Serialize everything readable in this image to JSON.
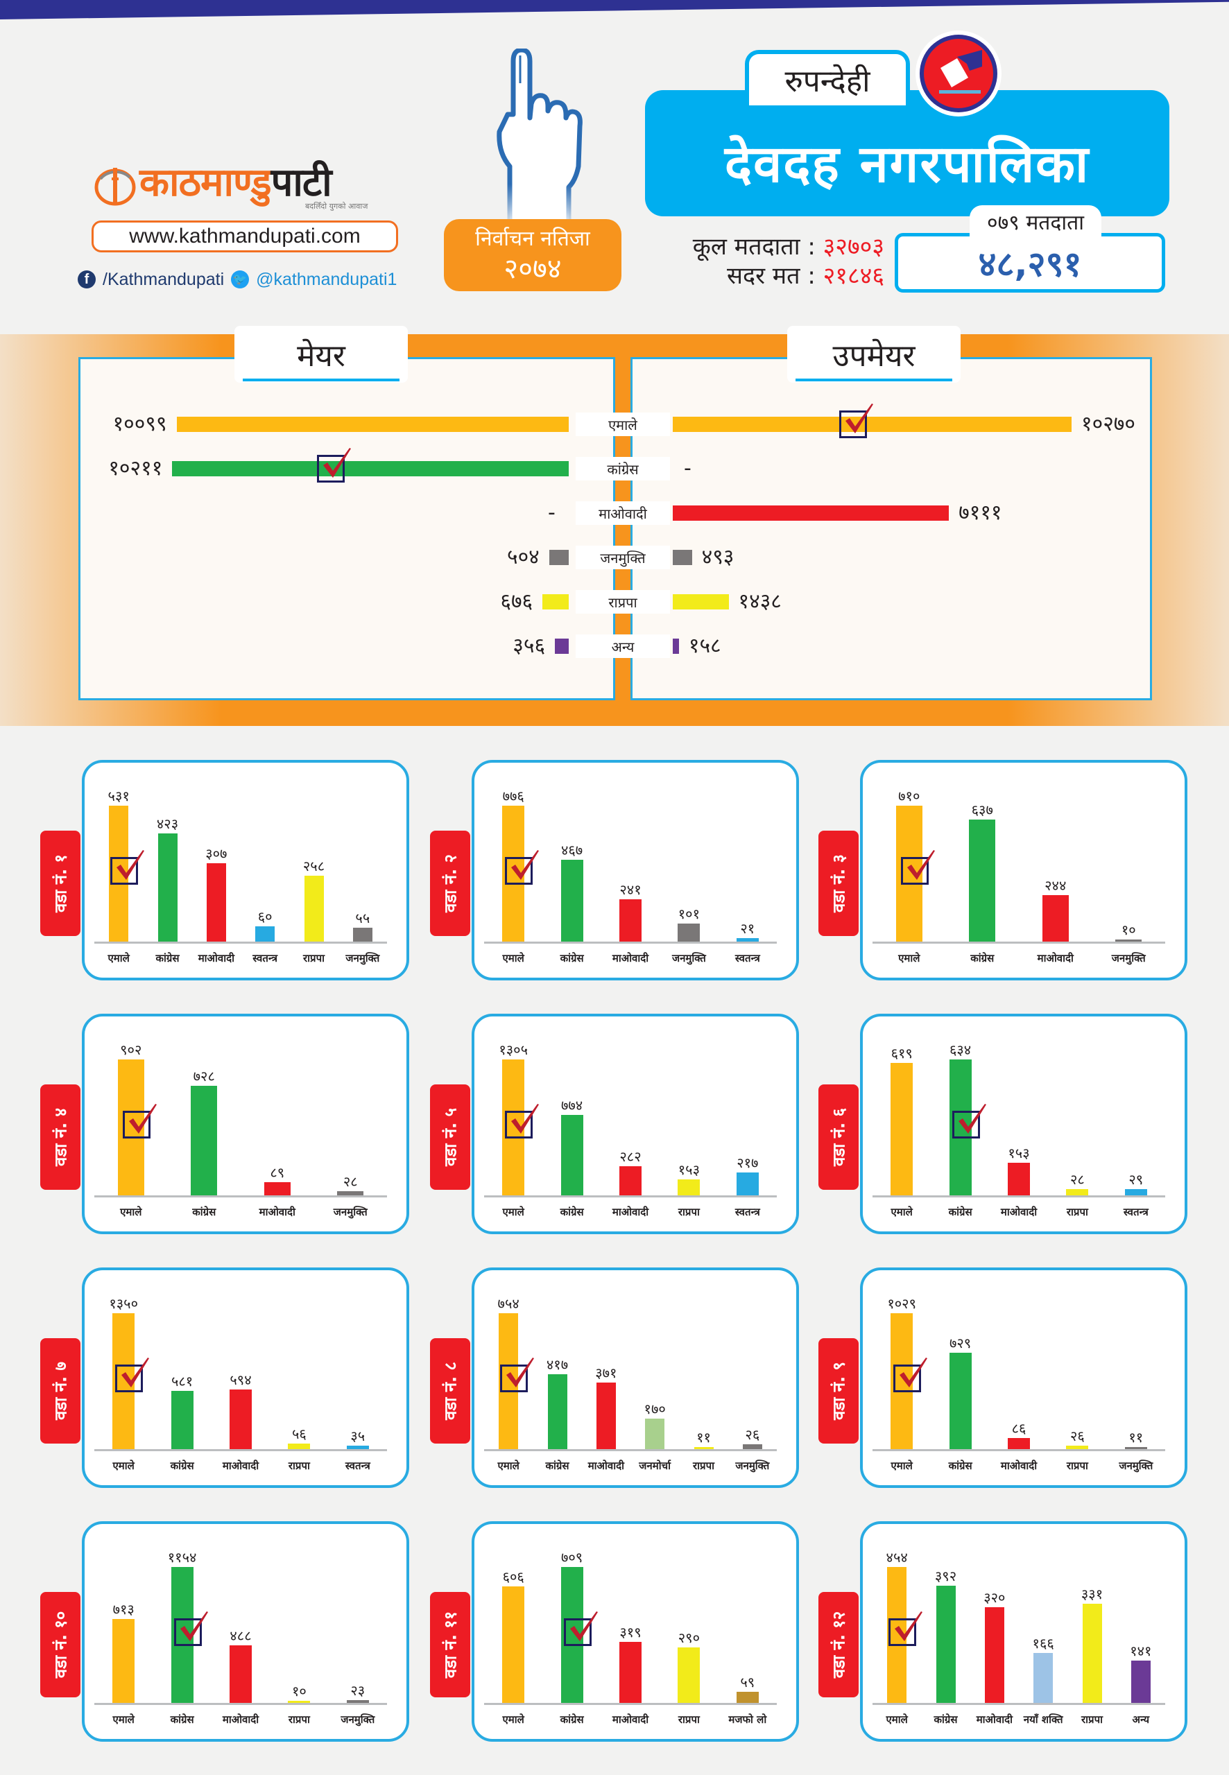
{
  "brand": {
    "logo_orange": "काठमाण्डु",
    "logo_dark": "पाटी",
    "tagline": "बदलिँदो युगको आवाज",
    "url": "www.kathmandupati.com",
    "facebook": "/Kathmandupati",
    "twitter": "@kathmandupati1"
  },
  "badge": {
    "line1": "निर्वाचन नतिजा",
    "line2": "२०७४"
  },
  "header": {
    "district": "रुपन्देही",
    "municipality": "देवदह नगरपालिका",
    "voters_tab": "०७९ मतदाता",
    "voters_079": "४८,२९१",
    "total_voters_label": "कूल मतदाता",
    "total_voters": "३२७०३",
    "valid_votes_label": "सदर मत",
    "valid_votes": "२१८४६",
    "separator": ":"
  },
  "colors": {
    "एमाले": "#fdb913",
    "कांग्रेस": "#22b04b",
    "माओवादी": "#ed1c24",
    "जनमुक्ति": "#7a7777",
    "राप्रपा": "#f2eb1a",
    "स्वतन्त्र": "#27aae1",
    "जनमोर्चा": "#a8d08d",
    "मजफो लो": "#c0922e",
    "नयाँ शक्ति": "#9dc3e6",
    "अन्य": "#6b3a96",
    "accent_blue": "#00aeef",
    "accent_orange": "#f7941d",
    "accent_red": "#ed1c24"
  },
  "chart_data": [
    {
      "type": "bar",
      "orientation": "horizontal-butterfly",
      "title": "मेयर / उपमेयर",
      "left_title": "मेयर",
      "right_title": "उपमेयर",
      "categories": [
        "एमाले",
        "कांग्रेस",
        "माओवादी",
        "जनमुक्ति",
        "राप्रपा",
        "अन्य"
      ],
      "series": [
        {
          "name": "मेयर",
          "values": [
            10099,
            10211,
            null,
            504,
            676,
            356
          ],
          "labels": [
            "१००९९",
            "१०२११",
            "-",
            "५०४",
            "६७६",
            "३५६"
          ],
          "winner": "कांग्रेस"
        },
        {
          "name": "उपमेयर",
          "values": [
            10270,
            null,
            7111,
            493,
            1438,
            158
          ],
          "labels": [
            "१०२७०",
            "-",
            "७१११",
            "४९३",
            "१४३८",
            "१५८"
          ],
          "winner": "एमाले"
        }
      ]
    },
    {
      "type": "bar",
      "title": "वडा नं. १",
      "categories": [
        "एमाले",
        "कांग्रेस",
        "माओवादी",
        "स्वतन्त्र",
        "राप्रपा",
        "जनमुक्ति"
      ],
      "values": [
        531,
        423,
        307,
        60,
        258,
        55
      ],
      "labels": [
        "५३१",
        "४२३",
        "३०७",
        "६०",
        "२५८",
        "५५"
      ],
      "winner": "एमाले"
    },
    {
      "type": "bar",
      "title": "वडा नं. २",
      "categories": [
        "एमाले",
        "कांग्रेस",
        "माओवादी",
        "जनमुक्ति",
        "स्वतन्त्र"
      ],
      "values": [
        776,
        467,
        241,
        101,
        21
      ],
      "labels": [
        "७७६",
        "४६७",
        "२४१",
        "१०१",
        "२१"
      ],
      "winner": "एमाले"
    },
    {
      "type": "bar",
      "title": "वडा नं. ३",
      "categories": [
        "एमाले",
        "कांग्रेस",
        "माओवादी",
        "जनमुक्ति"
      ],
      "values": [
        710,
        637,
        244,
        10
      ],
      "labels": [
        "७१०",
        "६३७",
        "२४४",
        "१०"
      ],
      "winner": "एमाले"
    },
    {
      "type": "bar",
      "title": "वडा नं. ४",
      "categories": [
        "एमाले",
        "कांग्रेस",
        "माओवादी",
        "जनमुक्ति"
      ],
      "values": [
        902,
        728,
        89,
        28
      ],
      "labels": [
        "९०२",
        "७२८",
        "८९",
        "२८"
      ],
      "winner": "एमाले"
    },
    {
      "type": "bar",
      "title": "वडा नं. ५",
      "categories": [
        "एमाले",
        "कांग्रेस",
        "माओवादी",
        "राप्रपा",
        "स्वतन्त्र"
      ],
      "values": [
        1305,
        774,
        282,
        153,
        217
      ],
      "labels": [
        "१३०५",
        "७७४",
        "२८२",
        "१५३",
        "२१७"
      ],
      "winner": "एमाले"
    },
    {
      "type": "bar",
      "title": "वडा नं. ६",
      "categories": [
        "एमाले",
        "कांग्रेस",
        "माओवादी",
        "राप्रपा",
        "स्वतन्त्र"
      ],
      "values": [
        619,
        634,
        153,
        28,
        29
      ],
      "labels": [
        "६१९",
        "६३४",
        "१५३",
        "२८",
        "२९"
      ],
      "winner": "कांग्रेस"
    },
    {
      "type": "bar",
      "title": "वडा नं. ७",
      "categories": [
        "एमाले",
        "कांग्रेस",
        "माओवादी",
        "राप्रपा",
        "स्वतन्त्र"
      ],
      "values": [
        1350,
        581,
        594,
        56,
        35
      ],
      "labels": [
        "१३५०",
        "५८१",
        "५९४",
        "५६",
        "३५"
      ],
      "winner": "एमाले"
    },
    {
      "type": "bar",
      "title": "वडा नं. ८",
      "categories": [
        "एमाले",
        "कांग्रेस",
        "माओवादी",
        "जनमोर्चा",
        "राप्रपा",
        "जनमुक्ति"
      ],
      "values": [
        754,
        417,
        371,
        170,
        11,
        26
      ],
      "labels": [
        "७५४",
        "४१७",
        "३७१",
        "१७०",
        "११",
        "२६"
      ],
      "winner": "एमाले"
    },
    {
      "type": "bar",
      "title": "वडा नं. ९",
      "categories": [
        "एमाले",
        "कांग्रेस",
        "माओवादी",
        "राप्रपा",
        "जनमुक्ति"
      ],
      "values": [
        1029,
        729,
        86,
        26,
        11
      ],
      "labels": [
        "१०२९",
        "७२९",
        "८६",
        "२६",
        "११"
      ],
      "winner": "एमाले"
    },
    {
      "type": "bar",
      "title": "वडा नं. १०",
      "categories": [
        "एमाले",
        "कांग्रेस",
        "माओवादी",
        "राप्रपा",
        "जनमुक्ति"
      ],
      "values": [
        713,
        1154,
        488,
        10,
        23
      ],
      "labels": [
        "७१३",
        "११५४",
        "४८८",
        "१०",
        "२३"
      ],
      "winner": "कांग्रेस"
    },
    {
      "type": "bar",
      "title": "वडा नं. ११",
      "categories": [
        "एमाले",
        "कांग्रेस",
        "माओवादी",
        "राप्रपा",
        "मजफो लो"
      ],
      "values": [
        606,
        709,
        319,
        290,
        59
      ],
      "labels": [
        "६०६",
        "७०९",
        "३१९",
        "२९०",
        "५९"
      ],
      "winner": "कांग्रेस"
    },
    {
      "type": "bar",
      "title": "वडा नं. १२",
      "categories": [
        "एमाले",
        "कांग्रेस",
        "माओवादी",
        "नयाँ शक्ति",
        "राप्रपा",
        "अन्य"
      ],
      "values": [
        454,
        392,
        320,
        166,
        331,
        141
      ],
      "labels": [
        "४५४",
        "३९२",
        "३२०",
        "१६६",
        "३३१",
        "१४१"
      ],
      "winner": "एमाले"
    }
  ]
}
